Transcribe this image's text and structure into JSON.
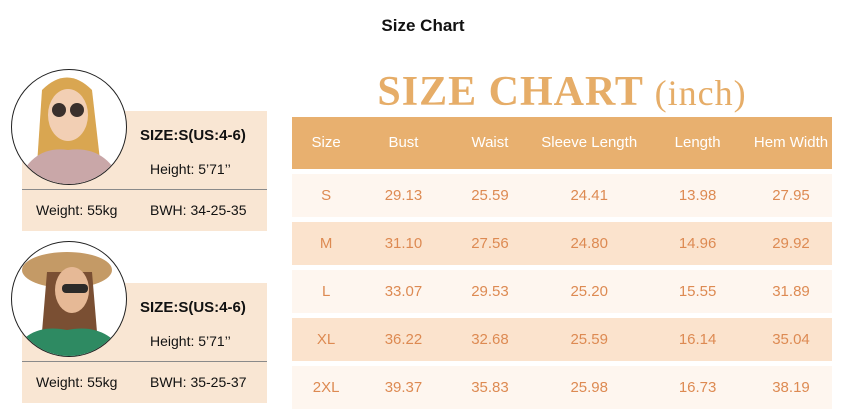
{
  "page_title": "Size Chart",
  "models": [
    {
      "size": "SIZE:S(US:4-6)",
      "height": "Height: 5’71’’",
      "weight": "Weight: 55kg",
      "bwh": "BWH: 34-25-35",
      "photo": "model-blonde-floral-top"
    },
    {
      "size": "SIZE:S(US:4-6)",
      "height": "Height: 5’71’’",
      "weight": "Weight: 55kg",
      "bwh": "BWH: 35-25-37",
      "photo": "model-hat-green-top"
    }
  ],
  "chart_heading": {
    "main": "SIZE CHART",
    "unit": "(inch)"
  },
  "table": {
    "headers": [
      "Size",
      "Bust",
      "Waist",
      "Sleeve Length",
      "Length",
      "Hem Width"
    ],
    "rows": [
      [
        "S",
        "29.13",
        "25.59",
        "24.41",
        "13.98",
        "27.95"
      ],
      [
        "M",
        "31.10",
        "27.56",
        "24.80",
        "14.96",
        "29.92"
      ],
      [
        "L",
        "33.07",
        "29.53",
        "25.20",
        "15.55",
        "31.89"
      ],
      [
        "XL",
        "36.22",
        "32.68",
        "25.59",
        "16.14",
        "35.04"
      ],
      [
        "2XL",
        "39.37",
        "35.83",
        "25.98",
        "16.73",
        "38.19"
      ]
    ]
  },
  "colors": {
    "header_bg": "#e8b06f",
    "heading": "#e6ad68",
    "cell_text": "#dd8a52",
    "row_light": "#fef6ef",
    "row_dark": "#fbe3cd",
    "panel_bg": "#f9e6d3"
  }
}
